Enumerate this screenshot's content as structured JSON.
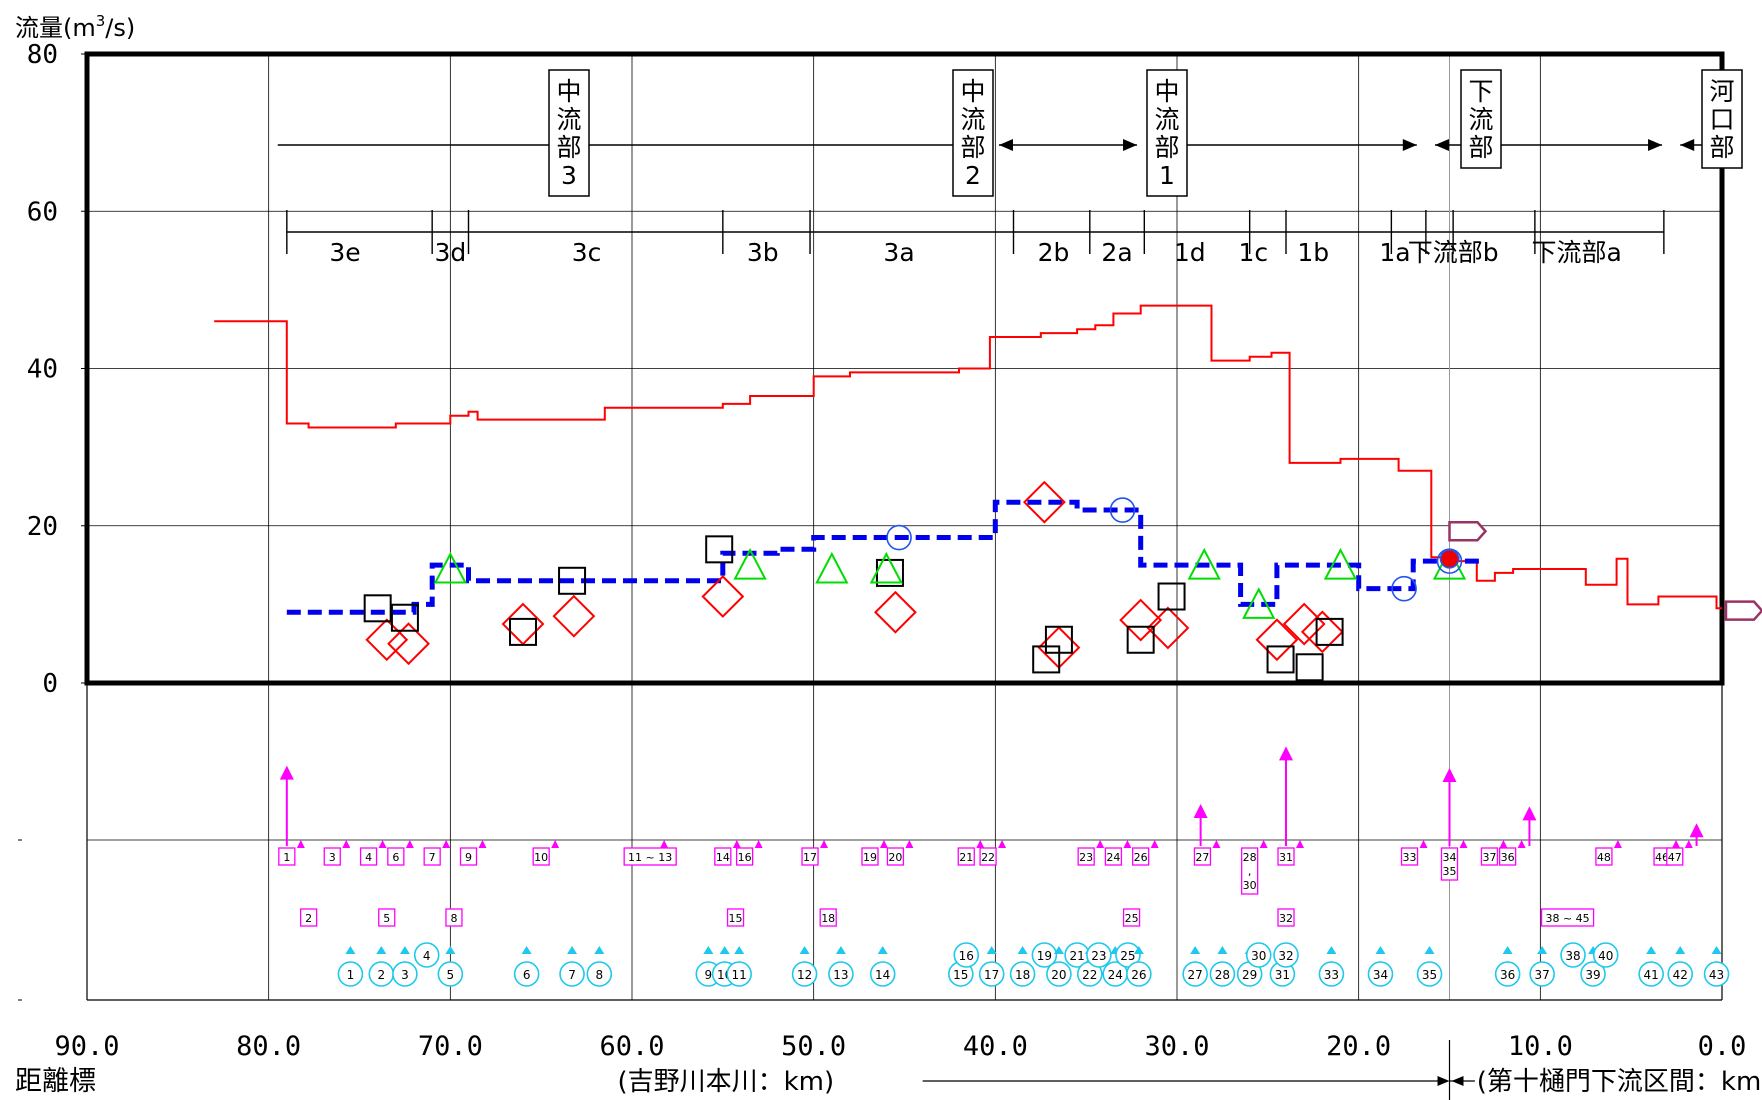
{
  "chart_data": {
    "type": "line",
    "ylabel_main": "流量(m",
    "ylabel_sup": "3",
    "ylabel_tail": "/s)",
    "ylim": [
      0,
      80
    ],
    "xlim": [
      90,
      0
    ],
    "yticks": [
      "0",
      "20",
      "40",
      "60",
      "80"
    ],
    "xticks": [
      {
        "x": 90,
        "label": "90.0"
      },
      {
        "x": 80,
        "label": "80.0"
      },
      {
        "x": 70,
        "label": "70.0"
      },
      {
        "x": 60,
        "label": "60.0"
      },
      {
        "x": 50,
        "label": "50.0"
      },
      {
        "x": 40,
        "label": "40.0"
      },
      {
        "x": 30,
        "label": "30.0"
      },
      {
        "x": 20,
        "label": "20.0"
      },
      {
        "x": 10,
        "label": "10.0"
      },
      {
        "x": 0,
        "label": "0.0"
      }
    ],
    "x_title": "距離標",
    "x_range_left": "(吉野川本川：km)",
    "x_range_right": "(第十樋門下流区間：km)",
    "reaches": [
      {
        "label": "中\n流\n部\n3",
        "x_from": 79.5,
        "x_to": 40.8
      },
      {
        "label": "中\n流\n部\n2",
        "x_from": 39.8,
        "x_to": 32.2
      },
      {
        "label": "中\n流\n部\n1",
        "x_from": 31.5,
        "x_to": 16.8
      },
      {
        "label": "下\n流\n部",
        "x_from": 15.8,
        "x_to": 3.3
      },
      {
        "label": "河\n口\n部",
        "x_from": 2.3,
        "x_to": 0
      }
    ],
    "sub_reaches": [
      {
        "label": "3e",
        "x": 75.8
      },
      {
        "label": "3d",
        "x": 70.0
      },
      {
        "label": "3c",
        "x": 62.5
      },
      {
        "label": "3b",
        "x": 52.8
      },
      {
        "label": "3a",
        "x": 45.3
      },
      {
        "label": "2b",
        "x": 36.8
      },
      {
        "label": "2a",
        "x": 33.3
      },
      {
        "label": "1d",
        "x": 29.3
      },
      {
        "label": "1c",
        "x": 25.8
      },
      {
        "label": "1b",
        "x": 22.5
      },
      {
        "label": "1a",
        "x": 18.0
      },
      {
        "label": "下流部b",
        "x": 14.8
      },
      {
        "label": "下流部a",
        "x": 8.0
      }
    ],
    "sub_reach_ticks": [
      79,
      71,
      69,
      55,
      50.2,
      39,
      34.8,
      31.8,
      26,
      24,
      18.2,
      16.3,
      14.8,
      10.3,
      3.2
    ],
    "series": [
      {
        "name": "",
        "color": "#ff0000",
        "style": "step",
        "points": [
          [
            83,
            46
          ],
          [
            79,
            46
          ],
          [
            79,
            33
          ],
          [
            77.8,
            33
          ],
          [
            77.8,
            32.5
          ],
          [
            73,
            32.5
          ],
          [
            73,
            33
          ],
          [
            70,
            33
          ],
          [
            70,
            34
          ],
          [
            69,
            34
          ],
          [
            69,
            34.5
          ],
          [
            68.5,
            34.5
          ],
          [
            68.5,
            33.5
          ],
          [
            61.5,
            33.5
          ],
          [
            61.5,
            35
          ],
          [
            55,
            35
          ],
          [
            55,
            35.5
          ],
          [
            53.5,
            35.5
          ],
          [
            53.5,
            36.5
          ],
          [
            50,
            36.5
          ],
          [
            50,
            39
          ],
          [
            48,
            39
          ],
          [
            48,
            39.5
          ],
          [
            42,
            39.5
          ],
          [
            42,
            40
          ],
          [
            40.3,
            40
          ],
          [
            40.3,
            44
          ],
          [
            37.5,
            44
          ],
          [
            37.5,
            44.5
          ],
          [
            35.5,
            44.5
          ],
          [
            35.5,
            45
          ],
          [
            34.5,
            45
          ],
          [
            34.5,
            45.5
          ],
          [
            33.5,
            45.5
          ],
          [
            33.5,
            47
          ],
          [
            32,
            47
          ],
          [
            32,
            48
          ],
          [
            28.1,
            48
          ],
          [
            28.1,
            41
          ],
          [
            26,
            41
          ],
          [
            26,
            41.5
          ],
          [
            24.8,
            41.5
          ],
          [
            24.8,
            42
          ],
          [
            23.8,
            42
          ],
          [
            23.8,
            28
          ],
          [
            21,
            28
          ],
          [
            21,
            28.5
          ],
          [
            17.8,
            28.5
          ],
          [
            17.8,
            27
          ],
          [
            16,
            27
          ],
          [
            16,
            16
          ],
          [
            14.5,
            16
          ],
          [
            14.5,
            15.5
          ],
          [
            13.5,
            15.5
          ],
          [
            13.5,
            13
          ],
          [
            12.5,
            13
          ],
          [
            12.5,
            14
          ],
          [
            11.5,
            14
          ],
          [
            11.5,
            14.5
          ],
          [
            7.5,
            14.5
          ],
          [
            7.5,
            12.5
          ],
          [
            5.8,
            12.5
          ],
          [
            5.8,
            15.8
          ],
          [
            5.2,
            15.8
          ],
          [
            5.2,
            10
          ],
          [
            3.5,
            10
          ],
          [
            3.5,
            11
          ],
          [
            0.3,
            11
          ],
          [
            0.3,
            9.5
          ],
          [
            0,
            9.5
          ]
        ]
      },
      {
        "name": "",
        "color": "#0000ee",
        "style": "dashed-step",
        "points": [
          [
            79,
            9
          ],
          [
            72,
            9
          ],
          [
            72,
            10
          ],
          [
            71,
            10
          ],
          [
            71,
            15
          ],
          [
            69,
            15
          ],
          [
            69,
            13
          ],
          [
            55,
            13
          ],
          [
            55,
            16.5
          ],
          [
            52,
            16.5
          ],
          [
            52,
            17
          ],
          [
            50,
            17
          ],
          [
            50,
            18.5
          ],
          [
            40,
            18.5
          ],
          [
            40,
            23
          ],
          [
            35.5,
            23
          ],
          [
            35.5,
            22
          ],
          [
            32,
            22
          ],
          [
            32,
            15
          ],
          [
            26.5,
            15
          ],
          [
            26.5,
            10
          ],
          [
            24.5,
            10
          ],
          [
            24.5,
            15
          ],
          [
            20,
            15
          ],
          [
            20,
            12
          ],
          [
            17,
            12
          ],
          [
            17,
            15.5
          ],
          [
            13,
            15.5
          ]
        ]
      }
    ],
    "markers": {
      "diamonds_red": [
        [
          73.5,
          5.5
        ],
        [
          72.3,
          5
        ],
        [
          66,
          7.5
        ],
        [
          63.2,
          8.5
        ],
        [
          55,
          11
        ],
        [
          45.5,
          9
        ],
        [
          37.3,
          23
        ],
        [
          36.5,
          4.5
        ],
        [
          32,
          8
        ],
        [
          30.5,
          7
        ],
        [
          24.5,
          5.5
        ],
        [
          23,
          7.5
        ],
        [
          22,
          6.5
        ]
      ],
      "squares_black": [
        [
          74,
          9.5
        ],
        [
          72.5,
          8.3
        ],
        [
          66,
          6.5
        ],
        [
          63.3,
          13
        ],
        [
          55.2,
          17
        ],
        [
          45.8,
          14
        ],
        [
          37.2,
          3
        ],
        [
          36.5,
          5.5
        ],
        [
          32,
          5.5
        ],
        [
          30.3,
          11
        ],
        [
          24.3,
          3
        ],
        [
          22.7,
          2
        ],
        [
          21.6,
          6.5
        ]
      ],
      "triangles_green": [
        [
          70,
          14.5
        ],
        [
          53.5,
          15
        ],
        [
          49,
          14.5
        ],
        [
          46,
          14.5
        ],
        [
          28.5,
          15
        ],
        [
          25.5,
          10
        ],
        [
          21,
          15
        ],
        [
          15,
          15
        ]
      ],
      "circles_blue": [
        [
          45.3,
          18.5
        ],
        [
          33,
          22
        ],
        [
          17.5,
          12
        ],
        [
          15,
          15.5
        ]
      ],
      "red_dot": [
        [
          15,
          15.8
        ]
      ]
    },
    "outflow_markers": [
      [
        15,
        19.3
      ],
      [
        0,
        9.2
      ]
    ],
    "lower_panel": {
      "pink_labels": [
        {
          "x": 79,
          "t": "1"
        },
        {
          "x": 77.8,
          "t": "2",
          "row": 2
        },
        {
          "x": 76.5,
          "t": "3"
        },
        {
          "x": 74.5,
          "t": "4"
        },
        {
          "x": 73.5,
          "t": "5",
          "row": 2
        },
        {
          "x": 73,
          "t": "6"
        },
        {
          "x": 71,
          "t": "7"
        },
        {
          "x": 69.8,
          "t": "8",
          "row": 2
        },
        {
          "x": 69,
          "t": "9"
        },
        {
          "x": 65,
          "t": "10"
        },
        {
          "x": 59,
          "t": "11 ~ 13",
          "wide": true
        },
        {
          "x": 55,
          "t": "14"
        },
        {
          "x": 54.3,
          "t": "15",
          "row": 2
        },
        {
          "x": 53.8,
          "t": "16"
        },
        {
          "x": 50.2,
          "t": "17"
        },
        {
          "x": 49.2,
          "t": "18",
          "row": 2
        },
        {
          "x": 46.9,
          "t": "19"
        },
        {
          "x": 45.5,
          "t": "20"
        },
        {
          "x": 41.6,
          "t": "21"
        },
        {
          "x": 40.4,
          "t": "22"
        },
        {
          "x": 35,
          "t": "23"
        },
        {
          "x": 33.5,
          "t": "24"
        },
        {
          "x": 32.5,
          "t": "25",
          "row": 2
        },
        {
          "x": 32,
          "t": "26"
        },
        {
          "x": 28.6,
          "t": "27"
        },
        {
          "x": 26,
          "t": "28\n,\n30",
          "tall": true
        },
        {
          "x": 24,
          "t": "31"
        },
        {
          "x": 24,
          "t": "32",
          "row": 2
        },
        {
          "x": 17.2,
          "t": "33"
        },
        {
          "x": 15,
          "t": "34\n35",
          "tall2": true
        },
        {
          "x": 11.8,
          "t": "36"
        },
        {
          "x": 12.8,
          "t": "37"
        },
        {
          "x": 6.5,
          "t": "48"
        },
        {
          "x": 3.3,
          "t": "46"
        },
        {
          "x": 2.6,
          "t": "47"
        },
        {
          "x": 8.5,
          "t": "38 ~ 45",
          "row": 2,
          "wide": true
        }
      ],
      "cyan_circles": [
        {
          "x": 75.5,
          "t": "1"
        },
        {
          "x": 73.8,
          "t": "2"
        },
        {
          "x": 72.5,
          "t": "3"
        },
        {
          "x": 71.3,
          "t": "4",
          "up": true
        },
        {
          "x": 70,
          "t": "5"
        },
        {
          "x": 65.8,
          "t": "6"
        },
        {
          "x": 63.3,
          "t": "7"
        },
        {
          "x": 61.8,
          "t": "8"
        },
        {
          "x": 55.8,
          "t": "9"
        },
        {
          "x": 54.9,
          "t": "10"
        },
        {
          "x": 54.1,
          "t": "11"
        },
        {
          "x": 50.5,
          "t": "12"
        },
        {
          "x": 48.5,
          "t": "13"
        },
        {
          "x": 46.2,
          "t": "14"
        },
        {
          "x": 41.9,
          "t": "15"
        },
        {
          "x": 41.6,
          "t": "16",
          "up": true
        },
        {
          "x": 40.2,
          "t": "17"
        },
        {
          "x": 38.5,
          "t": "18"
        },
        {
          "x": 37.3,
          "t": "19",
          "up": true
        },
        {
          "x": 36.5,
          "t": "20"
        },
        {
          "x": 35.5,
          "t": "21",
          "up": true
        },
        {
          "x": 34.8,
          "t": "22"
        },
        {
          "x": 34.3,
          "t": "23",
          "up": true
        },
        {
          "x": 33.4,
          "t": "24"
        },
        {
          "x": 32.7,
          "t": "25",
          "up": true
        },
        {
          "x": 32.1,
          "t": "26"
        },
        {
          "x": 29,
          "t": "27"
        },
        {
          "x": 27.5,
          "t": "28"
        },
        {
          "x": 26,
          "t": "29"
        },
        {
          "x": 25.5,
          "t": "30",
          "up": true
        },
        {
          "x": 24.2,
          "t": "31"
        },
        {
          "x": 24,
          "t": "32",
          "up": true
        },
        {
          "x": 21.5,
          "t": "33"
        },
        {
          "x": 18.8,
          "t": "34"
        },
        {
          "x": 16.1,
          "t": "35"
        },
        {
          "x": 11.8,
          "t": "36"
        },
        {
          "x": 9.9,
          "t": "37"
        },
        {
          "x": 8.2,
          "t": "38",
          "up": true
        },
        {
          "x": 7.1,
          "t": "39"
        },
        {
          "x": 6.4,
          "t": "40",
          "up": true
        },
        {
          "x": 3.9,
          "t": "41"
        },
        {
          "x": 2.3,
          "t": "42"
        },
        {
          "x": 0.3,
          "t": "43"
        }
      ],
      "magenta_arrows": [
        [
          79,
          0.62
        ],
        [
          28.7,
          0.3
        ],
        [
          24,
          0.78
        ],
        [
          15,
          0.6
        ],
        [
          10.6,
          0.28
        ],
        [
          1.4,
          0.14
        ]
      ]
    }
  }
}
